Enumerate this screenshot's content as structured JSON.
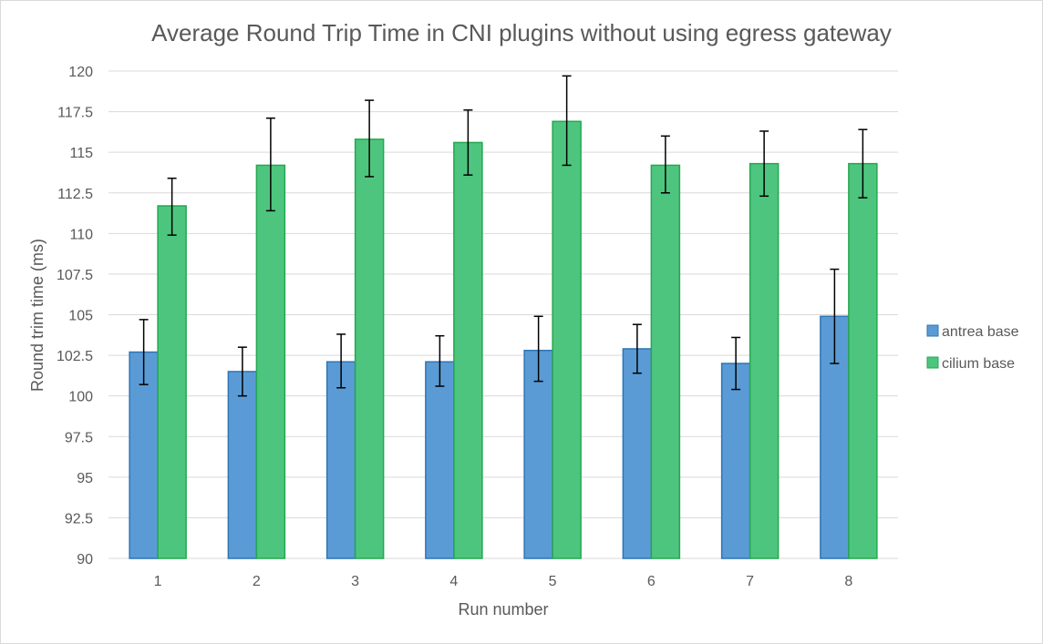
{
  "chart_data": {
    "type": "bar",
    "title": "Average Round Trip Time in CNI plugins without using egress gateway",
    "xlabel": "Run number",
    "ylabel": "Round trim time (ms)",
    "ylim": [
      90,
      120
    ],
    "yticks": [
      90,
      92.5,
      95,
      97.5,
      100,
      102.5,
      105,
      107.5,
      110,
      112.5,
      115,
      117.5,
      120
    ],
    "categories": [
      "1",
      "2",
      "3",
      "4",
      "5",
      "6",
      "7",
      "8"
    ],
    "grid": true,
    "legend_position": "right",
    "series": [
      {
        "name": "antrea base",
        "color": "#5b9bd5",
        "values": [
          102.7,
          101.5,
          102.1,
          102.1,
          102.8,
          102.9,
          102.0,
          104.9
        ],
        "error_low": [
          100.7,
          100.0,
          100.5,
          100.6,
          100.9,
          101.4,
          100.4,
          102.0
        ],
        "error_high": [
          104.7,
          103.0,
          103.8,
          103.7,
          104.9,
          104.4,
          103.6,
          107.8
        ]
      },
      {
        "name": "cilium base",
        "color": "#4ec57f",
        "values": [
          111.7,
          114.2,
          115.8,
          115.6,
          116.9,
          114.2,
          114.3,
          114.3
        ],
        "error_low": [
          109.9,
          111.4,
          113.5,
          113.6,
          114.2,
          112.5,
          112.3,
          112.2
        ],
        "error_high": [
          113.4,
          117.1,
          118.2,
          117.6,
          119.7,
          116.0,
          116.3,
          116.4
        ]
      }
    ]
  }
}
